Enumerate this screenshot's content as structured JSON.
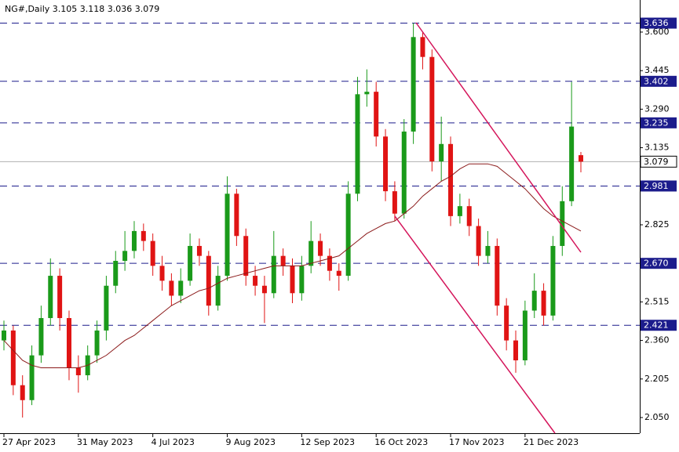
{
  "chart_data": {
    "type": "candlestick",
    "title": "NG#,Daily  3.105 3.118 3.036 3.079",
    "categories": [
      "27 Apr 2023",
      null,
      null,
      null,
      null,
      null,
      null,
      null,
      "31 May 2023",
      null,
      null,
      null,
      null,
      null,
      null,
      null,
      "4 Jul 2023",
      null,
      null,
      null,
      null,
      null,
      null,
      null,
      "9 Aug 2023",
      null,
      null,
      null,
      null,
      null,
      null,
      null,
      "12 Sep 2023",
      null,
      null,
      null,
      null,
      null,
      null,
      null,
      "16 Oct 2023",
      null,
      null,
      null,
      null,
      null,
      null,
      null,
      "17 Nov 2023",
      null,
      null,
      null,
      null,
      null,
      null,
      null,
      "21 Dec 2023",
      null,
      null,
      null,
      null,
      null,
      null
    ],
    "candles": [
      [
        2.36,
        2.44,
        2.32,
        2.4
      ],
      [
        2.4,
        2.42,
        2.14,
        2.18
      ],
      [
        2.18,
        2.22,
        2.05,
        2.12
      ],
      [
        2.12,
        2.34,
        2.1,
        2.3
      ],
      [
        2.3,
        2.5,
        2.27,
        2.45
      ],
      [
        2.45,
        2.69,
        2.42,
        2.62
      ],
      [
        2.62,
        2.65,
        2.4,
        2.45
      ],
      [
        2.45,
        2.48,
        2.2,
        2.25
      ],
      [
        2.25,
        2.3,
        2.15,
        2.22
      ],
      [
        2.22,
        2.34,
        2.2,
        2.3
      ],
      [
        2.3,
        2.44,
        2.27,
        2.4
      ],
      [
        2.4,
        2.62,
        2.36,
        2.58
      ],
      [
        2.58,
        2.72,
        2.55,
        2.68
      ],
      [
        2.68,
        2.8,
        2.64,
        2.72
      ],
      [
        2.72,
        2.84,
        2.69,
        2.8
      ],
      [
        2.8,
        2.83,
        2.72,
        2.76
      ],
      [
        2.76,
        2.79,
        2.62,
        2.66
      ],
      [
        2.66,
        2.7,
        2.56,
        2.6
      ],
      [
        2.6,
        2.63,
        2.5,
        2.54
      ],
      [
        2.54,
        2.65,
        2.51,
        2.6
      ],
      [
        2.6,
        2.79,
        2.58,
        2.74
      ],
      [
        2.74,
        2.77,
        2.66,
        2.7
      ],
      [
        2.7,
        2.72,
        2.46,
        2.5
      ],
      [
        2.5,
        2.66,
        2.48,
        2.62
      ],
      [
        2.62,
        3.02,
        2.6,
        2.95
      ],
      [
        2.95,
        2.97,
        2.74,
        2.78
      ],
      [
        2.78,
        2.81,
        2.58,
        2.62
      ],
      [
        2.62,
        2.66,
        2.54,
        2.58
      ],
      [
        2.58,
        2.62,
        2.43,
        2.55
      ],
      [
        2.55,
        2.8,
        2.53,
        2.7
      ],
      [
        2.7,
        2.73,
        2.62,
        2.66
      ],
      [
        2.66,
        2.69,
        2.51,
        2.55
      ],
      [
        2.55,
        2.7,
        2.52,
        2.66
      ],
      [
        2.66,
        2.84,
        2.63,
        2.76
      ],
      [
        2.76,
        2.79,
        2.66,
        2.7
      ],
      [
        2.7,
        2.73,
        2.6,
        2.64
      ],
      [
        2.64,
        2.67,
        2.56,
        2.62
      ],
      [
        2.62,
        3.0,
        2.6,
        2.95
      ],
      [
        2.95,
        3.42,
        2.92,
        3.35
      ],
      [
        3.35,
        3.45,
        3.3,
        3.36
      ],
      [
        3.36,
        3.4,
        3.14,
        3.18
      ],
      [
        3.18,
        3.21,
        2.92,
        2.96
      ],
      [
        2.96,
        3.0,
        2.84,
        2.87
      ],
      [
        2.87,
        3.25,
        2.85,
        3.2
      ],
      [
        3.2,
        3.636,
        3.15,
        3.58
      ],
      [
        3.58,
        3.6,
        3.45,
        3.5
      ],
      [
        3.5,
        3.53,
        3.04,
        3.08
      ],
      [
        3.08,
        3.26,
        3.0,
        3.15
      ],
      [
        3.15,
        3.18,
        2.82,
        2.86
      ],
      [
        2.86,
        2.95,
        2.83,
        2.9
      ],
      [
        2.9,
        2.93,
        2.78,
        2.82
      ],
      [
        2.82,
        2.85,
        2.66,
        2.7
      ],
      [
        2.7,
        2.8,
        2.67,
        2.74
      ],
      [
        2.74,
        2.77,
        2.46,
        2.5
      ],
      [
        2.5,
        2.53,
        2.32,
        2.36
      ],
      [
        2.36,
        2.4,
        2.23,
        2.28
      ],
      [
        2.28,
        2.52,
        2.26,
        2.48
      ],
      [
        2.48,
        2.63,
        2.45,
        2.56
      ],
      [
        2.56,
        2.59,
        2.42,
        2.46
      ],
      [
        2.46,
        2.78,
        2.44,
        2.74
      ],
      [
        2.74,
        2.98,
        2.7,
        2.92
      ],
      [
        2.92,
        3.4,
        2.9,
        3.22
      ],
      [
        3.105,
        3.118,
        3.036,
        3.079
      ]
    ],
    "ma": [
      2.36,
      2.32,
      2.28,
      2.26,
      2.25,
      2.25,
      2.25,
      2.25,
      2.25,
      2.26,
      2.28,
      2.3,
      2.33,
      2.36,
      2.38,
      2.41,
      2.44,
      2.47,
      2.5,
      2.52,
      2.54,
      2.56,
      2.57,
      2.59,
      2.61,
      2.62,
      2.63,
      2.64,
      2.65,
      2.66,
      2.66,
      2.66,
      2.66,
      2.67,
      2.68,
      2.69,
      2.7,
      2.73,
      2.76,
      2.79,
      2.81,
      2.83,
      2.84,
      2.87,
      2.9,
      2.94,
      2.97,
      3.0,
      3.02,
      3.05,
      3.07,
      3.07,
      3.07,
      3.06,
      3.03,
      3.0,
      2.97,
      2.93,
      2.89,
      2.86,
      2.84,
      2.82,
      2.8
    ],
    "up_color": "#1a9a1a",
    "down_color": "#e01414",
    "ma_color": "#8b1a1a",
    "level_color": "#1c1c8c",
    "ylim": [
      1.987,
      3.729
    ],
    "yticks": [
      {
        "value": 3.6,
        "label": "3.600"
      },
      3.445,
      {
        "value": 3.29,
        "label": "3.290"
      },
      3.135,
      2.825,
      2.515,
      {
        "value": 2.36,
        "label": "2.360"
      },
      2.205,
      {
        "value": 2.05,
        "label": "2.050"
      }
    ],
    "levels": [
      3.636,
      3.402,
      3.235,
      2.981,
      {
        "value": 2.67,
        "label": "2.670"
      },
      2.421
    ],
    "last_price": 3.079
  }
}
